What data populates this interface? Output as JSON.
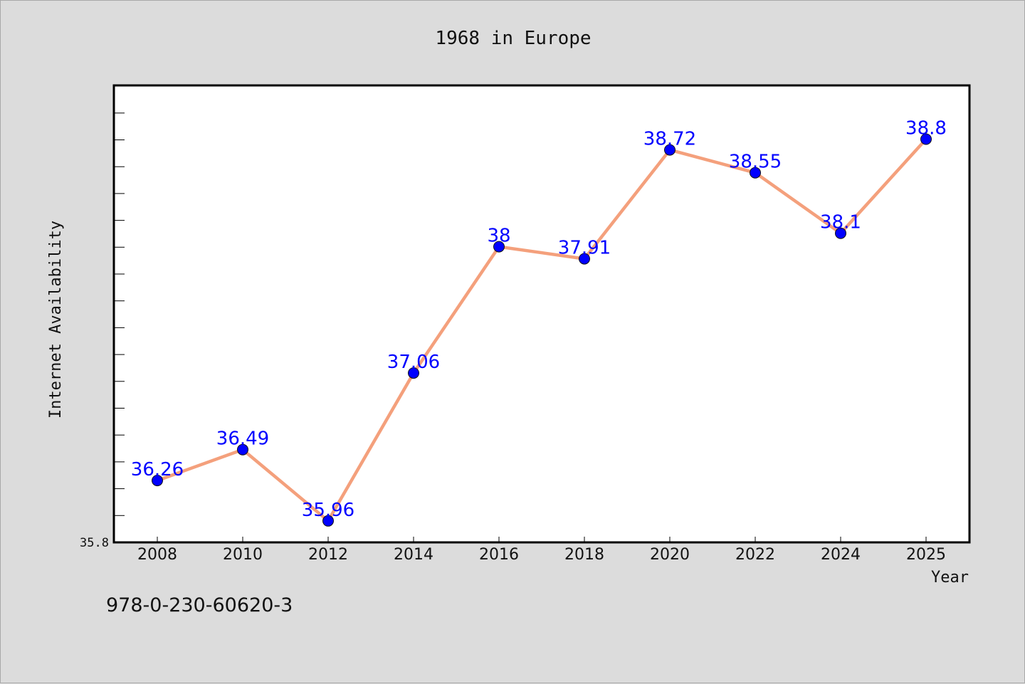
{
  "chart_data": {
    "type": "line",
    "title": "1968 in Europe",
    "xlabel": "Year",
    "ylabel": "Internet Availability",
    "categories": [
      "2008",
      "2010",
      "2012",
      "2014",
      "2016",
      "2018",
      "2020",
      "2022",
      "2024",
      "2025"
    ],
    "series": [
      {
        "values": [
          36.26,
          36.49,
          35.96,
          37.06,
          38,
          37.91,
          38.72,
          38.55,
          38.1,
          38.8
        ],
        "value_labels": [
          "36.26",
          "36.49",
          "35.96",
          "37.06",
          "38",
          "37.91",
          "38.72",
          "38.55",
          "38.1",
          "38.8"
        ]
      }
    ],
    "ylim": [
      35.8,
      39.2
    ],
    "y_min_label": "35.8",
    "grid": false,
    "line_color": "#f4a07c",
    "marker_color": "#0000ff",
    "label_color": "#0000ff"
  },
  "footnote": "978-0-230-60620-3"
}
